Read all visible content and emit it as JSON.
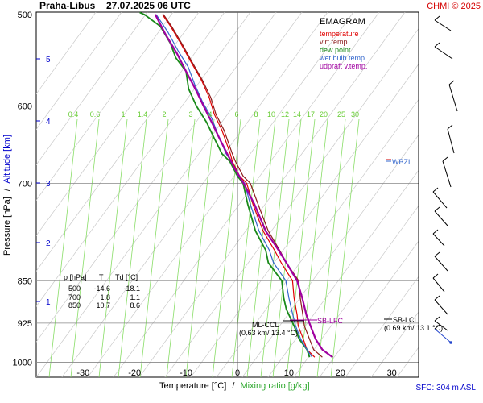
{
  "header": {
    "station": "Praha-Libus",
    "datetime": "27.07.2025 06 UTC",
    "credit": "CHMI © 2025"
  },
  "legend": {
    "title": "EMAGRAM",
    "items": [
      {
        "label": "temperature",
        "color": "#e00000"
      },
      {
        "label": "virt.temp.",
        "color": "#8b1a1a"
      },
      {
        "label": "dew point",
        "color": "#1a8a1a"
      },
      {
        "label": "wet bulb temp.",
        "color": "#3366cc"
      },
      {
        "label": "udpraft v.temp.",
        "color": "#a000a0"
      }
    ]
  },
  "axes": {
    "xlabel": "Temperature [°C]",
    "xlabel_sep": "/",
    "xlabel2": "Mixing ratio [g/kg]",
    "ylabel": "Pressure [hPa]",
    "ylabel_sep": "/",
    "ylabel2": "Altitude [km]",
    "sfc": "SFC: 304 m ASL"
  },
  "table": {
    "headers": [
      "p [hPa]",
      "T",
      "Td [°C]"
    ],
    "rows": [
      [
        "500",
        "-14.6",
        "-18.1"
      ],
      [
        "700",
        "1.8",
        "1.1"
      ],
      [
        "850",
        "10.7",
        "8.6"
      ]
    ]
  },
  "annotations": {
    "wbzl": "WBZL",
    "sb_lfc": "SB-LFC",
    "sb_lcl": "SB-LCL",
    "sb_lcl_detail": "(0.69 km/ 13.1 °C)",
    "ml_ccl": "ML-CCL",
    "ml_ccl_detail": "(0.63 km/ 13.4 °C)"
  },
  "chart_data": {
    "type": "line",
    "title": "",
    "x_range": [
      -40,
      32
    ],
    "y_range_hpa": [
      500,
      1000
    ],
    "y_scale": "log",
    "grid": true,
    "pressure_ticks": [
      500,
      600,
      700,
      850,
      925,
      1000
    ],
    "temp_ticks": [
      -30,
      -20,
      -10,
      0,
      10,
      20,
      30
    ],
    "altitude_ticks": [
      1,
      2,
      3,
      4,
      5
    ],
    "mixing_ratio_labels": [
      "0.4",
      "0.6",
      "1",
      "1.4",
      "2",
      "3",
      "4",
      "6",
      "8",
      "10",
      "12",
      "14",
      "17",
      "20",
      "25",
      "30"
    ],
    "series": [
      {
        "name": "temperature",
        "color": "#e00000",
        "points": [
          [
            15.0,
            990
          ],
          [
            13.5,
            975
          ],
          [
            12.8,
            955
          ],
          [
            11.8,
            930
          ],
          [
            11.6,
            910
          ],
          [
            11.0,
            880
          ],
          [
            10.7,
            850
          ],
          [
            8.5,
            820
          ],
          [
            7.2,
            800
          ],
          [
            5.0,
            770
          ],
          [
            3.0,
            730
          ],
          [
            1.8,
            700
          ],
          [
            0.4,
            690
          ],
          [
            -1.0,
            670
          ],
          [
            -1.4,
            660
          ],
          [
            -3.0,
            630
          ],
          [
            -4.5,
            610
          ],
          [
            -5.5,
            590
          ],
          [
            -7.0,
            570
          ],
          [
            -9.0,
            550
          ],
          [
            -11.0,
            530
          ],
          [
            -13.0,
            512
          ],
          [
            -14.6,
            500
          ]
        ]
      },
      {
        "name": "virt.temp.",
        "color": "#8b1a1a",
        "points": [
          [
            16.5,
            990
          ],
          [
            14.8,
            975
          ],
          [
            14.0,
            955
          ],
          [
            13.0,
            930
          ],
          [
            12.7,
            910
          ],
          [
            12.2,
            880
          ],
          [
            11.9,
            850
          ],
          [
            9.5,
            820
          ],
          [
            8.2,
            800
          ],
          [
            6.0,
            770
          ],
          [
            4.0,
            730
          ],
          [
            2.5,
            700
          ],
          [
            1.1,
            690
          ],
          [
            -0.4,
            670
          ],
          [
            -1.0,
            660
          ],
          [
            -2.6,
            630
          ],
          [
            -4.2,
            610
          ],
          [
            -5.2,
            590
          ],
          [
            -6.8,
            570
          ],
          [
            -8.8,
            550
          ],
          [
            -10.8,
            530
          ],
          [
            -12.8,
            512
          ],
          [
            -14.4,
            500
          ]
        ]
      },
      {
        "name": "dew point",
        "color": "#1a8a1a",
        "points": [
          [
            14.0,
            990
          ],
          [
            13.5,
            975
          ],
          [
            12.0,
            955
          ],
          [
            11.0,
            930
          ],
          [
            9.5,
            900
          ],
          [
            9.0,
            880
          ],
          [
            8.6,
            850
          ],
          [
            6.0,
            820
          ],
          [
            5.5,
            800
          ],
          [
            3.5,
            770
          ],
          [
            2.0,
            730
          ],
          [
            1.1,
            700
          ],
          [
            0.0,
            690
          ],
          [
            -1.5,
            670
          ],
          [
            -3.0,
            660
          ],
          [
            -4.5,
            640
          ],
          [
            -6.0,
            620
          ],
          [
            -8.0,
            600
          ],
          [
            -9.5,
            580
          ],
          [
            -10.0,
            560
          ],
          [
            -12.0,
            545
          ],
          [
            -13.0,
            530
          ],
          [
            -15.0,
            512
          ],
          [
            -18.1,
            500
          ],
          [
            -19.0,
            498
          ]
        ]
      },
      {
        "name": "wet bulb temp.",
        "color": "#3366cc",
        "points": [
          [
            14.5,
            990
          ],
          [
            13.5,
            975
          ],
          [
            12.3,
            955
          ],
          [
            11.3,
            930
          ],
          [
            10.5,
            900
          ],
          [
            10.0,
            880
          ],
          [
            9.4,
            850
          ],
          [
            7.0,
            820
          ],
          [
            6.2,
            800
          ],
          [
            4.2,
            770
          ],
          [
            2.5,
            730
          ],
          [
            1.4,
            700
          ],
          [
            0.2,
            690
          ],
          [
            -1.2,
            670
          ],
          [
            -2.2,
            660
          ],
          [
            -3.8,
            635
          ],
          [
            -5.0,
            615
          ],
          [
            -6.8,
            595
          ],
          [
            -8.3,
            575
          ],
          [
            -9.6,
            555
          ],
          [
            -11.5,
            538
          ],
          [
            -13.5,
            518
          ],
          [
            -15.8,
            500
          ]
        ]
      },
      {
        "name": "udpraft v.temp.",
        "color": "#a000a0",
        "points": [
          [
            18.5,
            990
          ],
          [
            16.5,
            975
          ],
          [
            15.2,
            955
          ],
          [
            14.2,
            930
          ],
          [
            13.4,
            910
          ],
          [
            12.6,
            880
          ],
          [
            11.6,
            850
          ],
          [
            9.5,
            820
          ],
          [
            8.0,
            800
          ],
          [
            5.5,
            770
          ],
          [
            3.3,
            730
          ],
          [
            1.2,
            700
          ],
          [
            -0.5,
            680
          ],
          [
            -2.0,
            660
          ],
          [
            -3.5,
            640
          ],
          [
            -5.0,
            620
          ],
          [
            -6.6,
            600
          ],
          [
            -8.2,
            580
          ],
          [
            -10.0,
            560
          ],
          [
            -11.8,
            540
          ],
          [
            -14.0,
            520
          ],
          [
            -16.0,
            500
          ]
        ]
      }
    ]
  }
}
